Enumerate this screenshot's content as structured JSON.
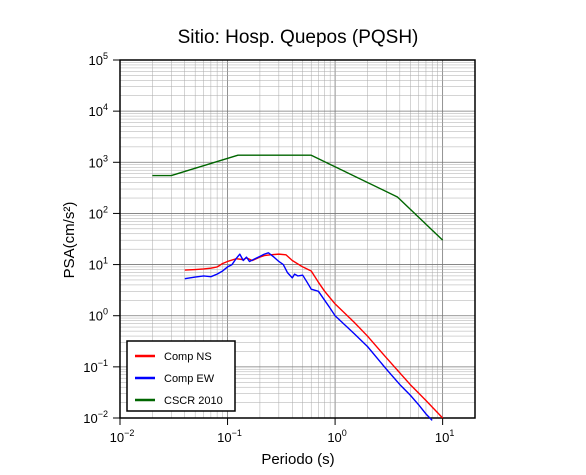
{
  "chart_data": {
    "type": "line",
    "title": "Sitio: Hosp. Quepos (PQSH)",
    "xlabel": "Periodo (s)",
    "ylabel": "PSA(cm/s²)",
    "x_scale": "log",
    "y_scale": "log",
    "xlim": [
      0.01,
      20
    ],
    "ylim": [
      0.01,
      100000
    ],
    "grid": true,
    "legend_position": "bottom-left",
    "x_ticks": [
      {
        "base": "10",
        "exp": "−2"
      },
      {
        "base": "10",
        "exp": "−1"
      },
      {
        "base": "10",
        "exp": "0"
      },
      {
        "base": "10",
        "exp": "1"
      }
    ],
    "y_ticks": [
      {
        "base": "10",
        "exp": "−2"
      },
      {
        "base": "10",
        "exp": "−1"
      },
      {
        "base": "10",
        "exp": "0"
      },
      {
        "base": "10",
        "exp": "1"
      },
      {
        "base": "10",
        "exp": "2"
      },
      {
        "base": "10",
        "exp": "3"
      },
      {
        "base": "10",
        "exp": "4"
      },
      {
        "base": "10",
        "exp": "5"
      }
    ],
    "series": [
      {
        "name": "Comp NS",
        "color": "#ff0000",
        "points": [
          [
            0.04,
            7.8
          ],
          [
            0.05,
            8.0
          ],
          [
            0.06,
            8.2
          ],
          [
            0.07,
            8.5
          ],
          [
            0.08,
            9.0
          ],
          [
            0.09,
            10.5
          ],
          [
            0.1,
            11.5
          ],
          [
            0.12,
            13.0
          ],
          [
            0.14,
            12.5
          ],
          [
            0.15,
            13.5
          ],
          [
            0.17,
            12.0
          ],
          [
            0.2,
            14.0
          ],
          [
            0.22,
            15.0
          ],
          [
            0.25,
            15.5
          ],
          [
            0.3,
            16.0
          ],
          [
            0.35,
            15.5
          ],
          [
            0.4,
            12.0
          ],
          [
            0.5,
            9.0
          ],
          [
            0.6,
            7.5
          ],
          [
            0.7,
            4.5
          ],
          [
            0.8,
            3.0
          ],
          [
            1.0,
            1.7
          ],
          [
            1.5,
            0.75
          ],
          [
            2,
            0.4
          ],
          [
            3,
            0.15
          ],
          [
            5,
            0.045
          ],
          [
            7,
            0.022
          ],
          [
            10,
            0.01
          ]
        ]
      },
      {
        "name": "Comp EW",
        "color": "#0000ff",
        "points": [
          [
            0.04,
            5.3
          ],
          [
            0.05,
            5.7
          ],
          [
            0.06,
            6.0
          ],
          [
            0.07,
            5.8
          ],
          [
            0.08,
            6.5
          ],
          [
            0.09,
            7.5
          ],
          [
            0.1,
            9.0
          ],
          [
            0.11,
            10.0
          ],
          [
            0.12,
            13.0
          ],
          [
            0.13,
            16.0
          ],
          [
            0.14,
            12.0
          ],
          [
            0.15,
            14.0
          ],
          [
            0.16,
            11.5
          ],
          [
            0.18,
            13.0
          ],
          [
            0.2,
            14.5
          ],
          [
            0.22,
            16.0
          ],
          [
            0.24,
            17.0
          ],
          [
            0.27,
            14.0
          ],
          [
            0.3,
            11.5
          ],
          [
            0.33,
            10.0
          ],
          [
            0.36,
            7.0
          ],
          [
            0.4,
            5.5
          ],
          [
            0.42,
            6.5
          ],
          [
            0.45,
            6.0
          ],
          [
            0.5,
            6.2
          ],
          [
            0.55,
            4.5
          ],
          [
            0.6,
            3.3
          ],
          [
            0.7,
            3.0
          ],
          [
            0.8,
            2.0
          ],
          [
            0.9,
            1.4
          ],
          [
            1.0,
            1.0
          ],
          [
            1.5,
            0.45
          ],
          [
            2,
            0.25
          ],
          [
            3,
            0.09
          ],
          [
            4,
            0.045
          ],
          [
            5,
            0.028
          ],
          [
            6,
            0.018
          ],
          [
            7,
            0.012
          ],
          [
            8,
            0.009
          ]
        ]
      },
      {
        "name": "CSCR 2010",
        "color": "#006600",
        "points": [
          [
            0.02,
            550
          ],
          [
            0.03,
            550
          ],
          [
            0.125,
            1375
          ],
          [
            0.6,
            1375
          ],
          [
            3.8,
            210
          ],
          [
            10,
            30
          ]
        ]
      }
    ]
  }
}
